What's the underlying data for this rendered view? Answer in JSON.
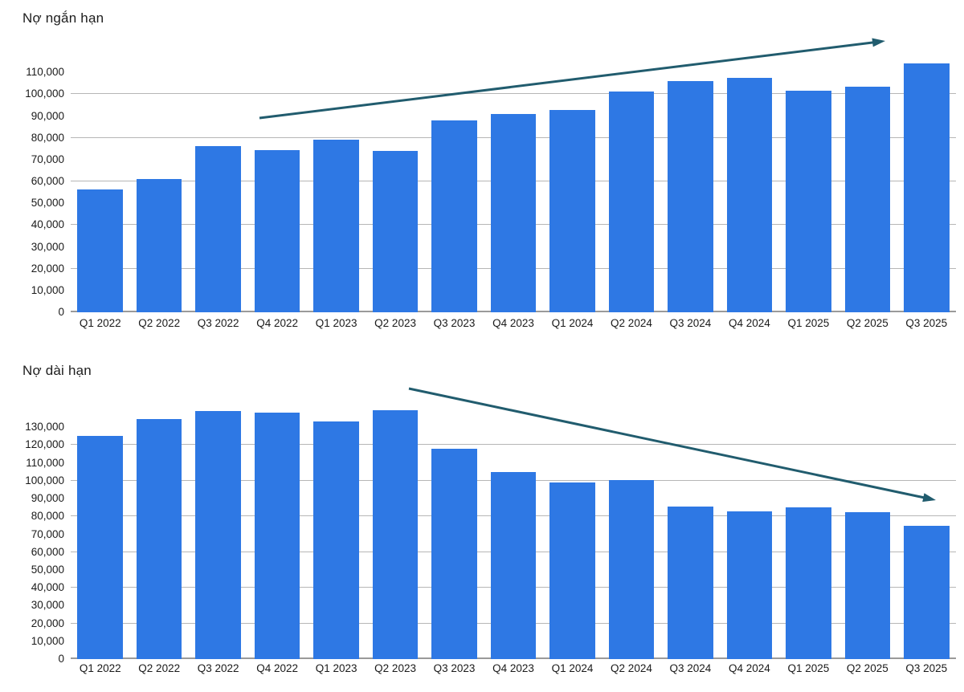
{
  "page": {
    "background": "#ffffff"
  },
  "colors": {
    "bar": "#2e78e4",
    "arrow": "#215c6e",
    "gridline": "#b6b6b6",
    "axis_line": "#9a9a9a",
    "text": "#1a1a1a"
  },
  "chart_data": [
    {
      "type": "bar",
      "title": "Nợ ngắn hạn",
      "categories": [
        "Q1 2022",
        "Q2 2022",
        "Q3 2022",
        "Q4 2022",
        "Q1 2023",
        "Q2 2023",
        "Q3 2023",
        "Q4 2023",
        "Q1 2024",
        "Q2 2024",
        "Q3 2024",
        "Q4 2024",
        "Q1 2025",
        "Q2 2025",
        "Q3 2025"
      ],
      "values": [
        56500,
        61200,
        76300,
        74500,
        79100,
        73900,
        88100,
        90800,
        92800,
        101400,
        106100,
        107400,
        101500,
        103400,
        114200
      ],
      "xlabel": "",
      "ylabel": "",
      "ylim": [
        0,
        120000
      ],
      "ytick_step": 10000,
      "ytick_max_label": 110000,
      "ytick_labels": [
        "0",
        "10,000",
        "20,000",
        "30,000",
        "40,000",
        "50,000",
        "60,000",
        "70,000",
        "80,000",
        "90,000",
        "100,000",
        "110,000"
      ],
      "gridline_step": 20000,
      "grid": true,
      "legend_position": "none",
      "annotation": {
        "type": "trend-arrow",
        "direction": "up",
        "x1": 323,
        "y1": 147,
        "x2": 1102,
        "y2": 51
      }
    },
    {
      "type": "bar",
      "title": "Nợ dài hạn",
      "categories": [
        "Q1 2022",
        "Q2 2022",
        "Q3 2022",
        "Q4 2022",
        "Q1 2023",
        "Q2 2023",
        "Q3 2023",
        "Q4 2023",
        "Q1 2024",
        "Q2 2024",
        "Q3 2024",
        "Q4 2024",
        "Q1 2025",
        "Q2 2025",
        "Q3 2025"
      ],
      "values": [
        125000,
        134800,
        139000,
        138000,
        133400,
        139700,
        118000,
        104800,
        99000,
        100200,
        85600,
        83000,
        85200,
        82600,
        74800
      ],
      "xlabel": "",
      "ylabel": "",
      "ylim": [
        0,
        140000
      ],
      "ytick_step": 10000,
      "ytick_max_label": 130000,
      "ytick_labels": [
        "0",
        "10,000",
        "20,000",
        "30,000",
        "40,000",
        "50,000",
        "60,000",
        "70,000",
        "80,000",
        "90,000",
        "100,000",
        "110,000",
        "120,000",
        "130,000"
      ],
      "gridline_step": 20000,
      "grid": true,
      "legend_position": "none",
      "annotation": {
        "type": "trend-arrow",
        "direction": "down",
        "x1": 509,
        "y1": 484,
        "x2": 1165,
        "y2": 623
      }
    }
  ]
}
